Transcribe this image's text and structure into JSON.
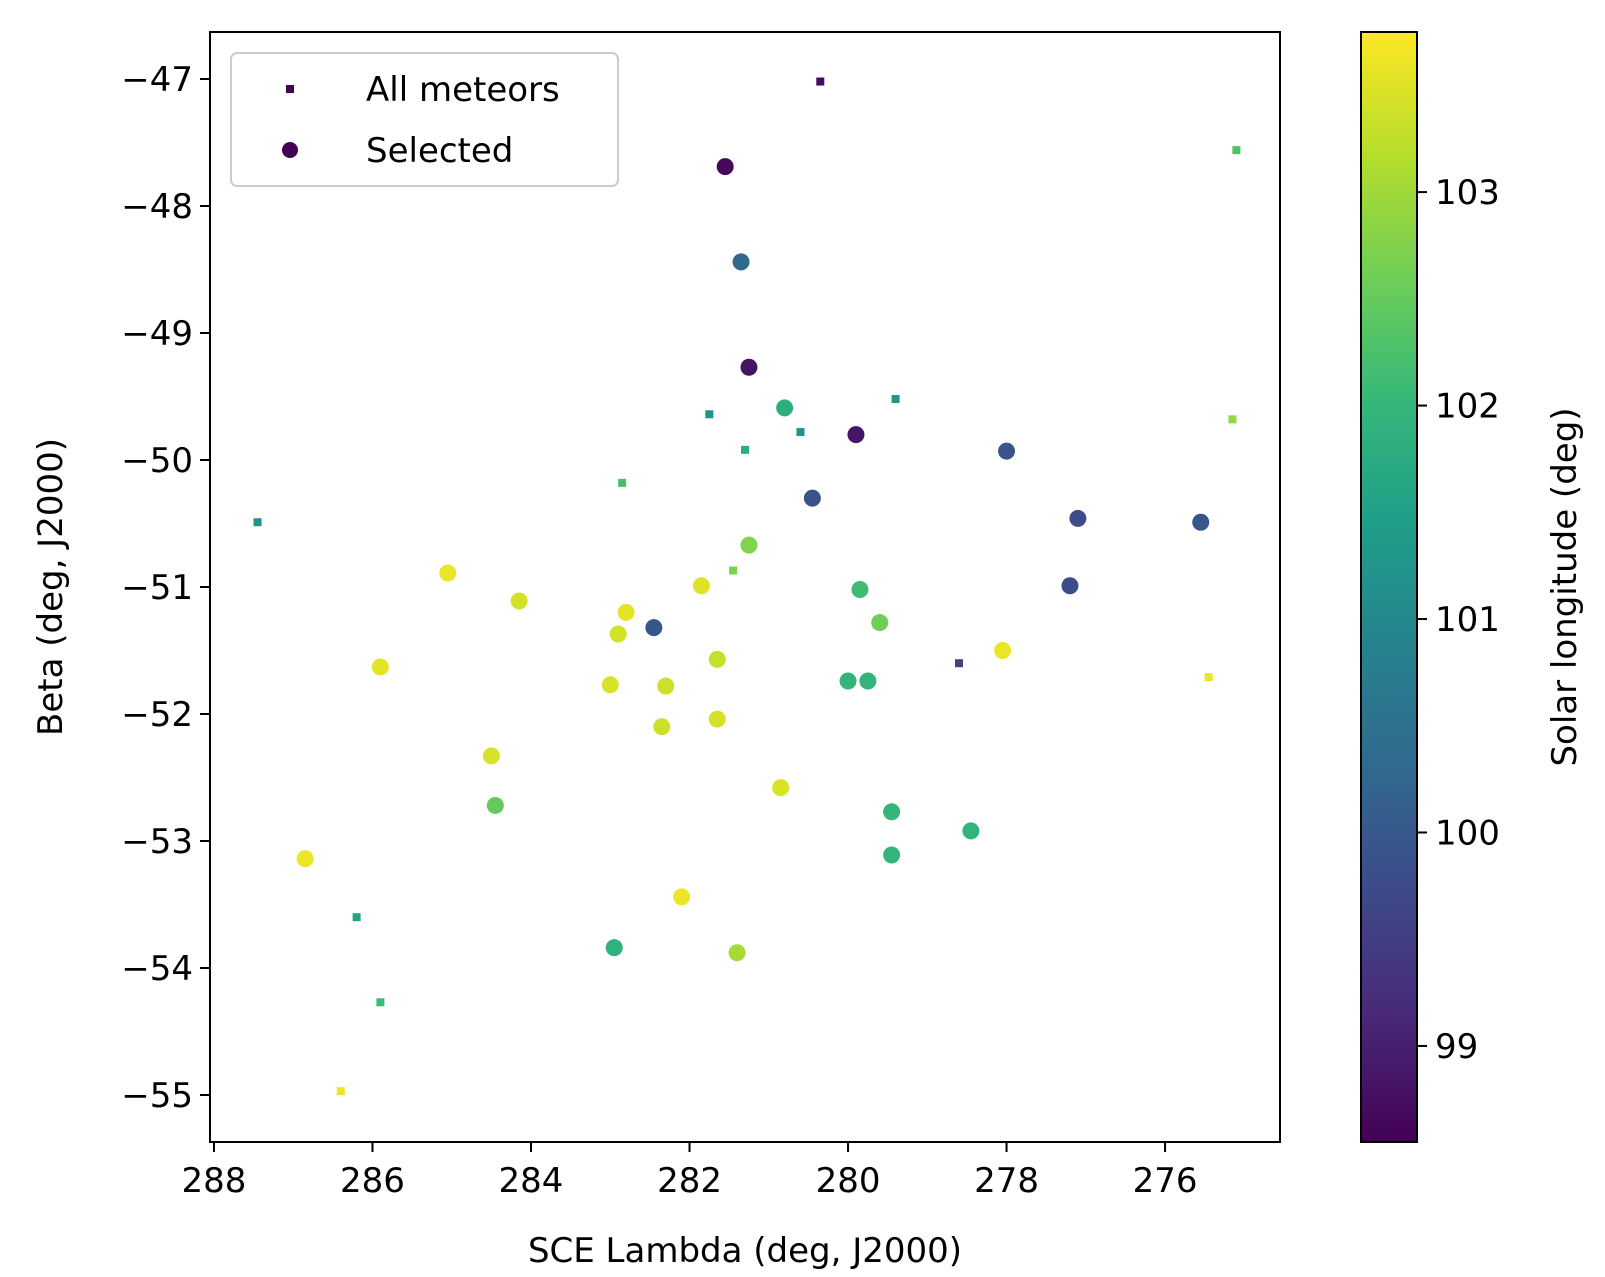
{
  "chart_data": {
    "type": "scatter",
    "xlabel": "SCE Lambda (deg, J2000)",
    "ylabel": "Beta (deg, J2000)",
    "x_axis_inverted": true,
    "xlim": [
      288.05,
      274.55
    ],
    "ylim": [
      -55.37,
      -46.63
    ],
    "x_ticks": [
      {
        "value": 288,
        "label": "288"
      },
      {
        "value": 286,
        "label": "286"
      },
      {
        "value": 284,
        "label": "284"
      },
      {
        "value": 282,
        "label": "282"
      },
      {
        "value": 280,
        "label": "280"
      },
      {
        "value": 278,
        "label": "278"
      },
      {
        "value": 276,
        "label": "276"
      }
    ],
    "y_ticks": [
      {
        "value": -47,
        "label": "−47"
      },
      {
        "value": -48,
        "label": "−48"
      },
      {
        "value": -49,
        "label": "−49"
      },
      {
        "value": -50,
        "label": "−50"
      },
      {
        "value": -51,
        "label": "−51"
      },
      {
        "value": -52,
        "label": "−52"
      },
      {
        "value": -53,
        "label": "−53"
      },
      {
        "value": -54,
        "label": "−54"
      },
      {
        "value": -55,
        "label": "−55"
      }
    ],
    "grid": false,
    "legend_position": "top-left",
    "legend": [
      {
        "label": "All meteors",
        "marker": "square"
      },
      {
        "label": "Selected",
        "marker": "circle"
      }
    ],
    "colorbar": {
      "label": "Solar longitude (deg)",
      "colormap": "viridis",
      "range": [
        98.55,
        103.75
      ],
      "ticks": [
        {
          "value": 99,
          "label": "99"
        },
        {
          "value": 100,
          "label": "100"
        },
        {
          "value": 101,
          "label": "101"
        },
        {
          "value": 102,
          "label": "102"
        },
        {
          "value": 103,
          "label": "103"
        }
      ]
    },
    "series": [
      {
        "name": "All meteors",
        "marker": "square",
        "points": [
          {
            "x": 280.35,
            "y": -47.02,
            "c": 98.7
          },
          {
            "x": 275.1,
            "y": -47.56,
            "c": 102.3
          },
          {
            "x": 279.4,
            "y": -49.52,
            "c": 101.3
          },
          {
            "x": 281.75,
            "y": -49.64,
            "c": 101.2
          },
          {
            "x": 280.6,
            "y": -49.78,
            "c": 101.2
          },
          {
            "x": 281.3,
            "y": -49.92,
            "c": 101.8
          },
          {
            "x": 275.15,
            "y": -49.68,
            "c": 102.9
          },
          {
            "x": 282.85,
            "y": -50.18,
            "c": 102.2
          },
          {
            "x": 287.45,
            "y": -50.49,
            "c": 101.2
          },
          {
            "x": 281.45,
            "y": -50.87,
            "c": 102.7
          },
          {
            "x": 278.6,
            "y": -51.6,
            "c": 99.6
          },
          {
            "x": 275.45,
            "y": -51.71,
            "c": 103.6
          },
          {
            "x": 286.2,
            "y": -53.6,
            "c": 101.6
          },
          {
            "x": 285.9,
            "y": -54.27,
            "c": 102.1
          },
          {
            "x": 286.4,
            "y": -54.97,
            "c": 103.6
          }
        ]
      },
      {
        "name": "Selected",
        "marker": "circle",
        "points": [
          {
            "x": 281.55,
            "y": -47.69,
            "c": 98.65
          },
          {
            "x": 281.35,
            "y": -48.44,
            "c": 100.3
          },
          {
            "x": 281.25,
            "y": -49.27,
            "c": 98.8
          },
          {
            "x": 280.8,
            "y": -49.59,
            "c": 101.8
          },
          {
            "x": 279.9,
            "y": -49.8,
            "c": 98.85
          },
          {
            "x": 278.0,
            "y": -49.93,
            "c": 99.9
          },
          {
            "x": 280.45,
            "y": -50.3,
            "c": 99.9
          },
          {
            "x": 277.1,
            "y": -50.46,
            "c": 99.75
          },
          {
            "x": 275.55,
            "y": -50.49,
            "c": 99.95
          },
          {
            "x": 281.25,
            "y": -50.67,
            "c": 102.75
          },
          {
            "x": 285.05,
            "y": -50.89,
            "c": 103.6
          },
          {
            "x": 281.85,
            "y": -50.99,
            "c": 103.5
          },
          {
            "x": 277.2,
            "y": -50.99,
            "c": 99.8
          },
          {
            "x": 279.85,
            "y": -51.02,
            "c": 102.1
          },
          {
            "x": 284.15,
            "y": -51.11,
            "c": 103.4
          },
          {
            "x": 282.8,
            "y": -51.2,
            "c": 103.55
          },
          {
            "x": 279.6,
            "y": -51.28,
            "c": 102.6
          },
          {
            "x": 282.45,
            "y": -51.32,
            "c": 99.95
          },
          {
            "x": 282.9,
            "y": -51.37,
            "c": 103.4
          },
          {
            "x": 278.05,
            "y": -51.5,
            "c": 103.6
          },
          {
            "x": 281.65,
            "y": -51.57,
            "c": 103.3
          },
          {
            "x": 285.9,
            "y": -51.63,
            "c": 103.55
          },
          {
            "x": 280.0,
            "y": -51.74,
            "c": 101.95
          },
          {
            "x": 279.75,
            "y": -51.74,
            "c": 101.95
          },
          {
            "x": 283.0,
            "y": -51.77,
            "c": 103.45
          },
          {
            "x": 282.3,
            "y": -51.78,
            "c": 103.35
          },
          {
            "x": 281.65,
            "y": -52.04,
            "c": 103.4
          },
          {
            "x": 282.35,
            "y": -52.1,
            "c": 103.35
          },
          {
            "x": 284.5,
            "y": -52.33,
            "c": 103.45
          },
          {
            "x": 280.85,
            "y": -52.58,
            "c": 103.45
          },
          {
            "x": 284.45,
            "y": -52.72,
            "c": 102.5
          },
          {
            "x": 279.45,
            "y": -52.77,
            "c": 102.0
          },
          {
            "x": 278.45,
            "y": -52.92,
            "c": 101.95
          },
          {
            "x": 279.45,
            "y": -53.11,
            "c": 101.95
          },
          {
            "x": 286.85,
            "y": -53.14,
            "c": 103.6
          },
          {
            "x": 282.1,
            "y": -53.44,
            "c": 103.6
          },
          {
            "x": 282.95,
            "y": -53.84,
            "c": 101.9
          },
          {
            "x": 281.4,
            "y": -53.88,
            "c": 103.05
          }
        ]
      }
    ]
  }
}
